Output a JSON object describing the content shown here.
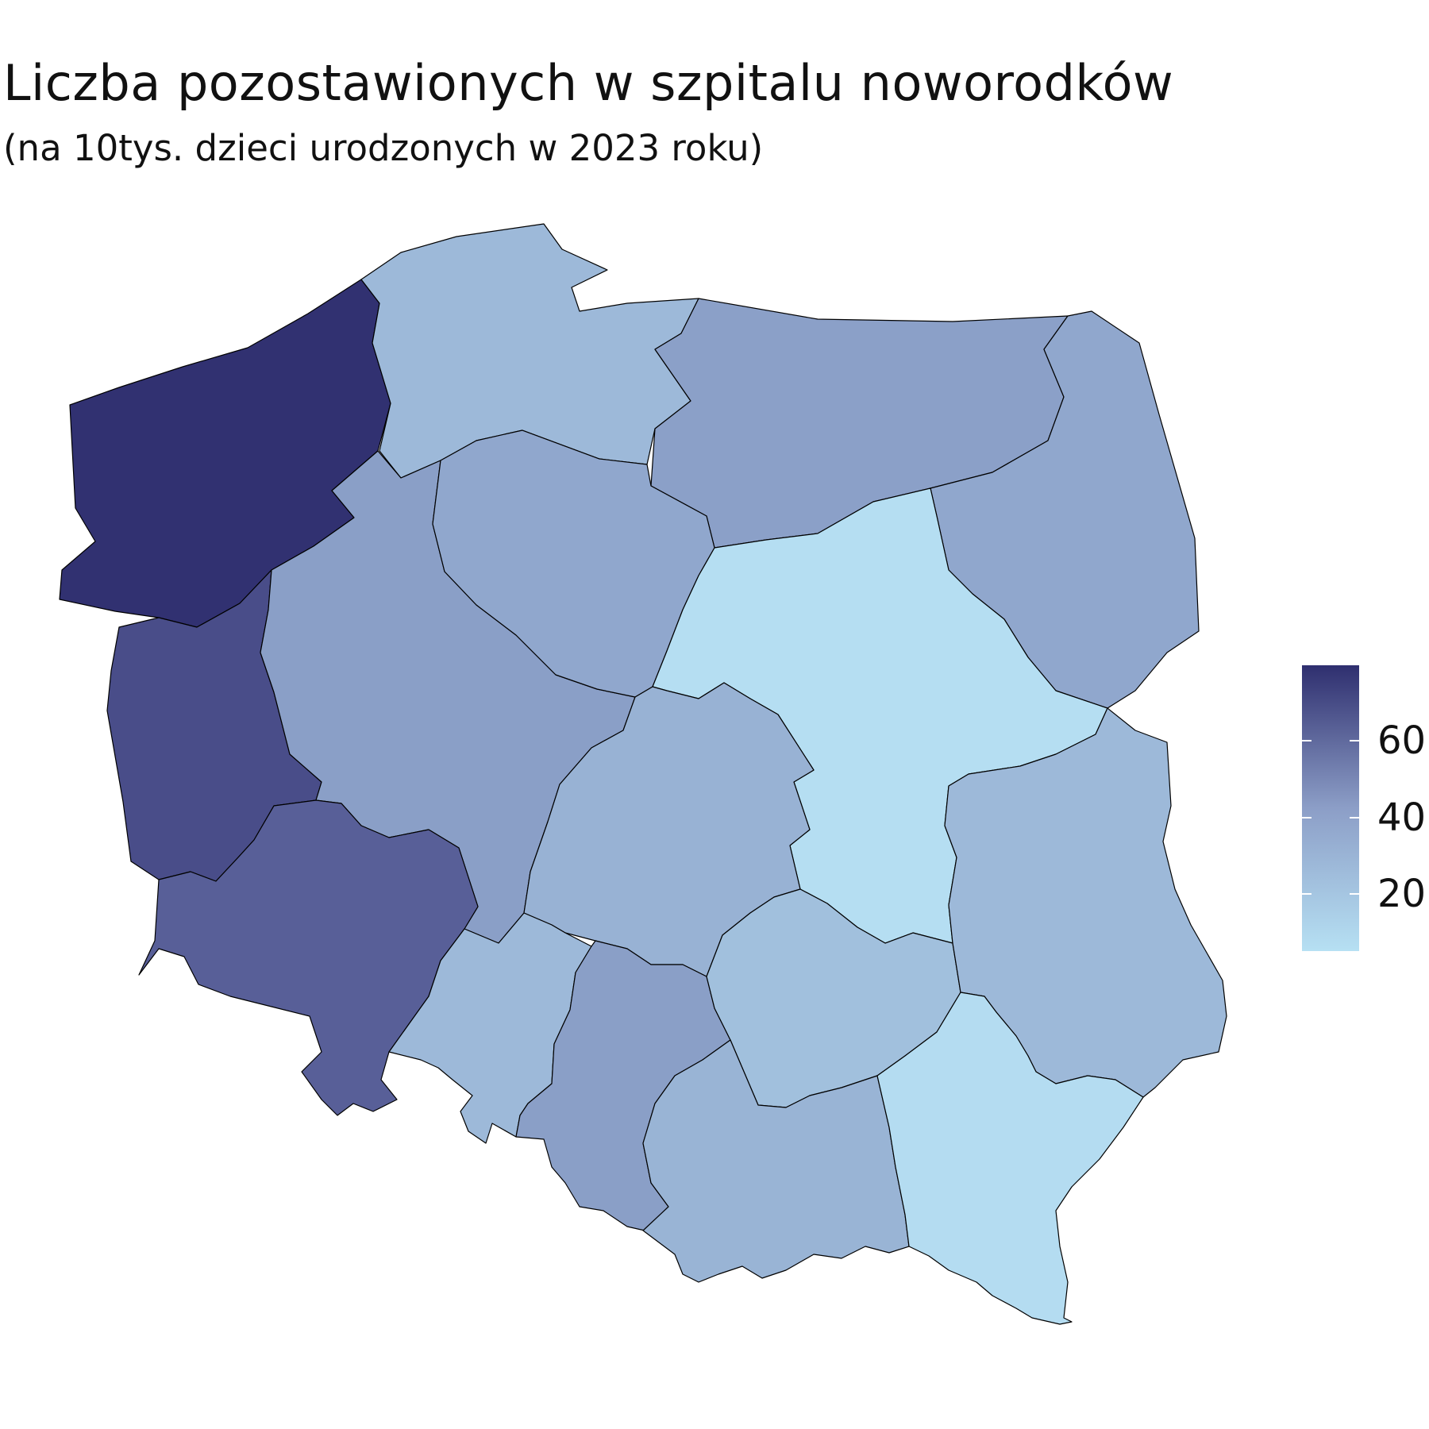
{
  "title": "Liczba pozostawionych w szpitalu noworodków",
  "subtitle": "(na 10tys. dzieci urodzonych w 2023 roku)",
  "scale": {
    "min": 0,
    "max": 77,
    "low_color": "#b6e0f3",
    "high_color": "#2f2f6f",
    "ticks": [
      "20",
      "40",
      "60"
    ]
  },
  "chart_data": {
    "type": "choropleth",
    "title": "Liczba pozostawionych w szpitalu noworodków",
    "subtitle": "(na 10tys. dzieci urodzonych w 2023 roku)",
    "legend": "right",
    "regions": [
      {
        "name": "zachodniopomorskie",
        "value": 76
      },
      {
        "name": "pomorskie",
        "value": 22
      },
      {
        "name": "warmińsko-mazurskie",
        "value": 36
      },
      {
        "name": "podlaskie",
        "value": 32
      },
      {
        "name": "lubuskie",
        "value": 62
      },
      {
        "name": "wielkopolskie",
        "value": 37
      },
      {
        "name": "kujawsko-pomorskie",
        "value": 32
      },
      {
        "name": "mazowieckie",
        "value": 1
      },
      {
        "name": "dolnośląskie",
        "value": 55
      },
      {
        "name": "łódzkie",
        "value": 26
      },
      {
        "name": "lubelskie",
        "value": 22
      },
      {
        "name": "opolskie",
        "value": 22
      },
      {
        "name": "śląskie",
        "value": 37
      },
      {
        "name": "świętokrzyskie",
        "value": 18
      },
      {
        "name": "małopolskie",
        "value": 25
      },
      {
        "name": "podkarpackie",
        "value": 2
      }
    ]
  }
}
